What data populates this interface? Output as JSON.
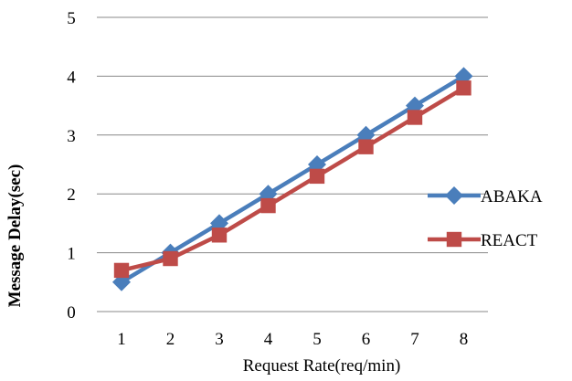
{
  "chart_data": {
    "type": "line",
    "x": [
      1,
      2,
      3,
      4,
      5,
      6,
      7,
      8
    ],
    "categories": [
      "1",
      "2",
      "3",
      "4",
      "5",
      "6",
      "7",
      "8"
    ],
    "series": [
      {
        "name": "ABAKA",
        "values": [
          0.5,
          1.0,
          1.5,
          2.0,
          2.5,
          3.0,
          3.5,
          4.0
        ],
        "color": "#4a7ebb",
        "marker": "diamond"
      },
      {
        "name": "REACT",
        "values": [
          0.7,
          0.9,
          1.3,
          1.8,
          2.3,
          2.8,
          3.3,
          3.8
        ],
        "color": "#be4b48",
        "marker": "square"
      }
    ],
    "xlabel": "Request Rate(req/min)",
    "ylabel": "Message Delay(sec)",
    "ylim": [
      0,
      5
    ],
    "yticks": [
      "0",
      "1",
      "2",
      "3",
      "4",
      "5"
    ],
    "grid": "horizontal",
    "legend_position": "right"
  }
}
